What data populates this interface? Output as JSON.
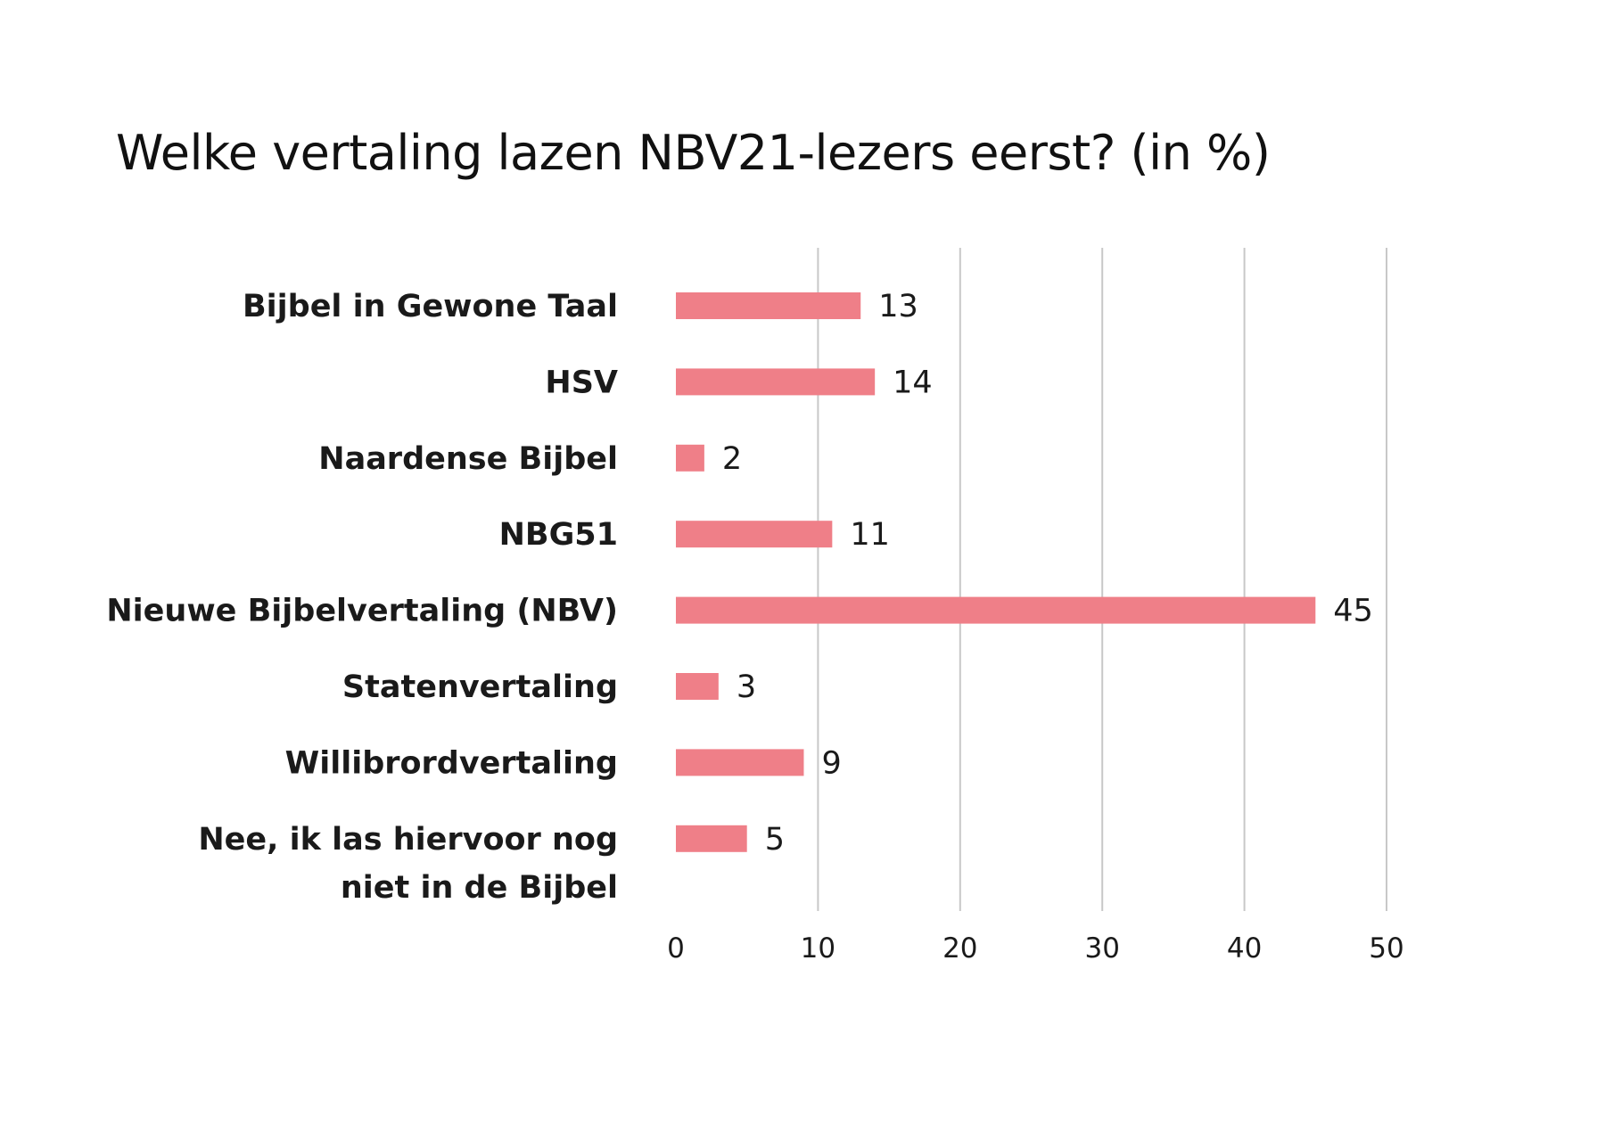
{
  "chart_data": {
    "type": "bar",
    "orientation": "horizontal",
    "title": "Welke vertaling lazen NBV21-lezers eerst? (in %)",
    "categories": [
      "Bijbel in Gewone Taal",
      "HSV",
      "Naardense Bijbel",
      "NBG51",
      "Nieuwe Bijbelvertaling (NBV)",
      "Statenvertaling",
      "Willibrordvertaling",
      "Nee, ik las hiervoor nog niet in de Bijbel"
    ],
    "category_lines": [
      [
        "Bijbel in Gewone Taal"
      ],
      [
        "HSV"
      ],
      [
        "Naardense Bijbel"
      ],
      [
        "NBG51"
      ],
      [
        "Nieuwe Bijbelvertaling (NBV)"
      ],
      [
        "Statenvertaling"
      ],
      [
        "Willibrordvertaling"
      ],
      [
        "Nee, ik las hiervoor nog",
        "niet in de Bijbel"
      ]
    ],
    "values": [
      13,
      14,
      2,
      11,
      45,
      3,
      9,
      5
    ],
    "xlim": [
      0,
      50
    ],
    "ticks": [
      0,
      10,
      20,
      30,
      40,
      50
    ],
    "tick_labels": [
      "0",
      "10",
      "20",
      "30",
      "40",
      "50"
    ],
    "grid": "vertical",
    "legend": "none",
    "bar_color": "#ef7f88",
    "grid_color": "#c8c8c8"
  }
}
